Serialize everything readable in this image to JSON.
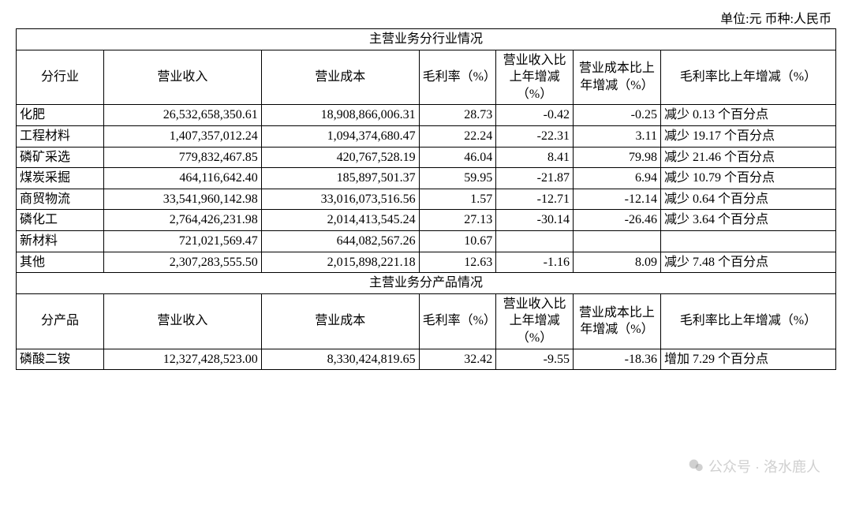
{
  "unit_label": "单位:元   币种:人民币",
  "section1_title": "主营业务分行业情况",
  "section2_title": "主营业务分产品情况",
  "headers1": {
    "c0": "分行业",
    "c1": "营业收入",
    "c2": "营业成本",
    "c3": "毛利率（%）",
    "c4": "营业收入比上年增减（%）",
    "c5": "营业成本比上年增减（%）",
    "c6": "毛利率比上年增减（%）"
  },
  "headers2": {
    "c0": "分产品",
    "c1": "营业收入",
    "c2": "营业成本",
    "c3": "毛利率（%）",
    "c4": "营业收入比上年增减（%）",
    "c5": "营业成本比上年增减（%）",
    "c6": "毛利率比上年增减（%）"
  },
  "rows1": [
    {
      "label": "化肥",
      "rev": "26,532,658,350.61",
      "cost": "18,908,866,006.31",
      "gp": "28.73",
      "rchg": "-0.42",
      "cchg": "-0.25",
      "gchg": "减少 0.13 个百分点"
    },
    {
      "label": "工程材料",
      "rev": "1,407,357,012.24",
      "cost": "1,094,374,680.47",
      "gp": "22.24",
      "rchg": "-22.31",
      "cchg": "3.11",
      "gchg": "减少 19.17 个百分点"
    },
    {
      "label": "磷矿采选",
      "rev": "779,832,467.85",
      "cost": "420,767,528.19",
      "gp": "46.04",
      "rchg": "8.41",
      "cchg": "79.98",
      "gchg": "减少 21.46 个百分点"
    },
    {
      "label": "煤炭采掘",
      "rev": "464,116,642.40",
      "cost": "185,897,501.37",
      "gp": "59.95",
      "rchg": "-21.87",
      "cchg": "6.94",
      "gchg": "减少 10.79 个百分点"
    },
    {
      "label": "商贸物流",
      "rev": "33,541,960,142.98",
      "cost": "33,016,073,516.56",
      "gp": "1.57",
      "rchg": "-12.71",
      "cchg": "-12.14",
      "gchg": "减少 0.64 个百分点"
    },
    {
      "label": "磷化工",
      "rev": "2,764,426,231.98",
      "cost": "2,014,413,545.24",
      "gp": "27.13",
      "rchg": "-30.14",
      "cchg": "-26.46",
      "gchg": "减少 3.64 个百分点"
    },
    {
      "label": "新材料",
      "rev": "721,021,569.47",
      "cost": "644,082,567.26",
      "gp": "10.67",
      "rchg": "",
      "cchg": "",
      "gchg": ""
    },
    {
      "label": "其他",
      "rev": "2,307,283,555.50",
      "cost": "2,015,898,221.18",
      "gp": "12.63",
      "rchg": "-1.16",
      "cchg": "8.09",
      "gchg": "减少 7.48 个百分点"
    }
  ],
  "rows2": [
    {
      "label": "磷酸二铵",
      "rev": "12,327,428,523.00",
      "cost": "8,330,424,819.65",
      "gp": "32.42",
      "rchg": "-9.55",
      "cchg": "-18.36",
      "gchg": "增加 7.29 个百分点"
    }
  ],
  "col_widths": {
    "c0": "100px",
    "c1": "180px",
    "c2": "180px",
    "c3": "88px",
    "c4": "88px",
    "c5": "100px",
    "c6": "200px"
  },
  "watermark_text": "公众号 · 洛水鹿人"
}
